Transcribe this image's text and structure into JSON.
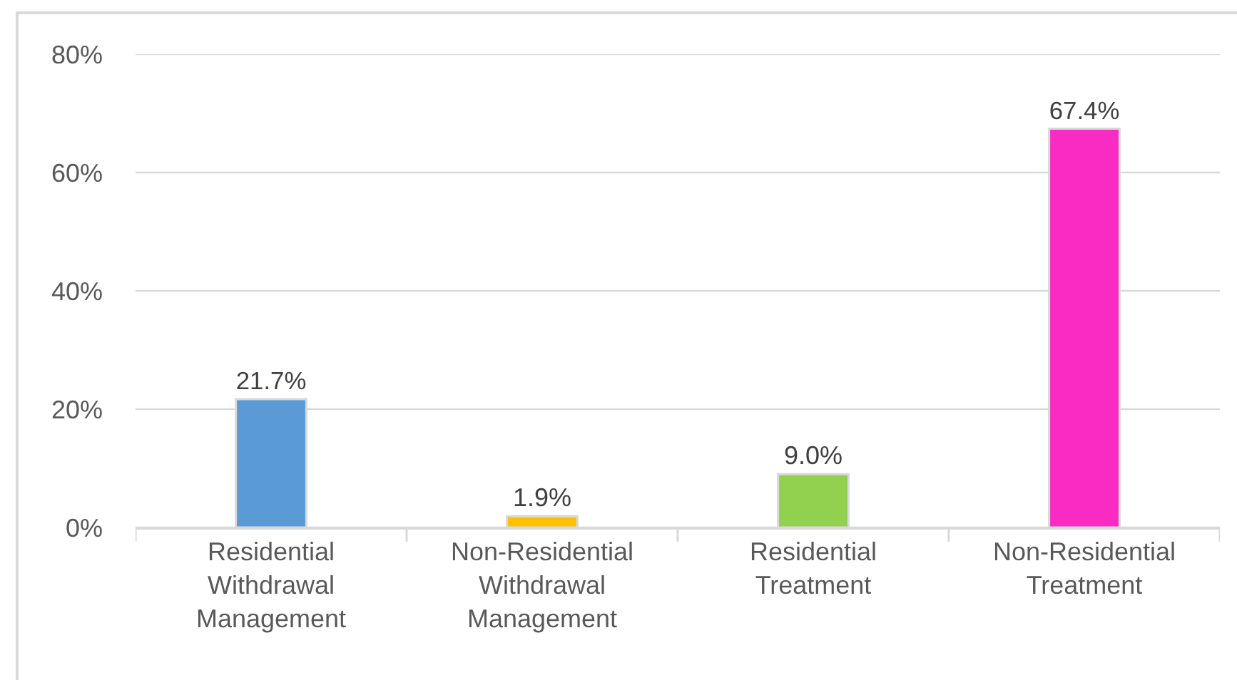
{
  "chart_data": {
    "type": "bar",
    "categories": [
      "Residential Withdrawal Management",
      "Non-Residential Withdrawal Management",
      "Residential Treatment",
      "Non-Residential Treatment"
    ],
    "values": [
      21.7,
      1.9,
      9.0,
      67.4
    ],
    "colors": [
      "#5b9bd5",
      "#ffc000",
      "#92d050",
      "#f92bc2"
    ],
    "value_labels": [
      "21.7%",
      "1.9%",
      "9.0%",
      "67.4%"
    ],
    "ylim": [
      0,
      80
    ],
    "yticks": [
      {
        "value": 0,
        "label": "0%"
      },
      {
        "value": 20,
        "label": "20%"
      },
      {
        "value": 40,
        "label": "40%"
      },
      {
        "value": 60,
        "label": "60%"
      },
      {
        "value": 80,
        "label": "80%"
      }
    ],
    "grid": "y",
    "legend": false
  }
}
